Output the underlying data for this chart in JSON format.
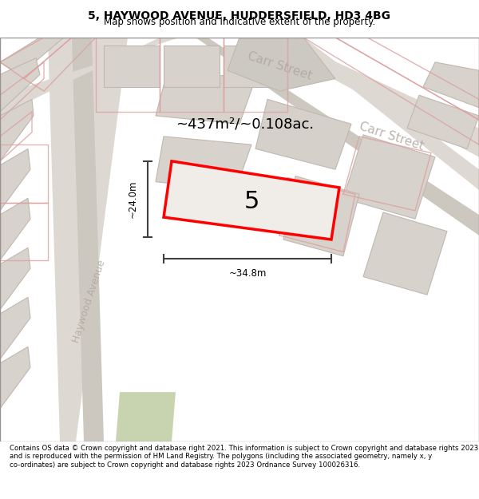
{
  "title_line1": "5, HAYWOOD AVENUE, HUDDERSFIELD, HD3 4BG",
  "title_line2": "Map shows position and indicative extent of the property.",
  "footer_text": "Contains OS data © Crown copyright and database right 2021. This information is subject to Crown copyright and database rights 2023 and is reproduced with the permission of HM Land Registry. The polygons (including the associated geometry, namely x, y co-ordinates) are subject to Crown copyright and database rights 2023 Ordnance Survey 100026316.",
  "bg_color": "#f5f0ee",
  "map_bg": "#f0ece8",
  "road_fill": "#e8e0d8",
  "building_fill": "#d8d0c8",
  "highlight_fill": "#e8e4e0",
  "green_fill": "#c8d8b0",
  "red_outline": "#ff0000",
  "pink_road": "#e8b0b0",
  "street_color": "#c0b8b0",
  "area_text": "~437m²/~0.108ac.",
  "label_5": "5",
  "dim_width": "~34.8m",
  "dim_height": "~24.0m",
  "carr_street_label": "Carr Street",
  "haywood_avenue_label": "Haywood Avenue"
}
